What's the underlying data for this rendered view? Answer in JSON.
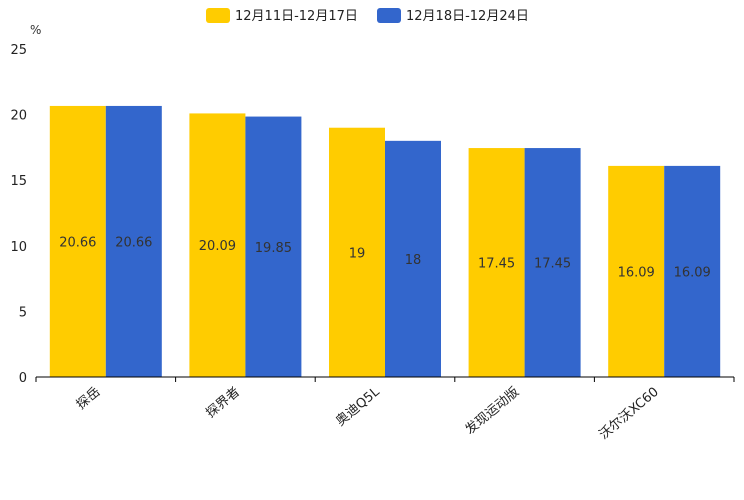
{
  "chart_data": {
    "type": "bar",
    "title": "",
    "ylabel": "%",
    "xlabel": "",
    "ylim": [
      0,
      25
    ],
    "yticks": [
      0,
      5,
      10,
      15,
      20,
      25
    ],
    "categories": [
      "探岳",
      "探界者",
      "奥迪Q5L",
      "发现运动版",
      "沃尔沃XC60"
    ],
    "series": [
      {
        "name": "12月11日-12月17日",
        "color": "#FFCC00",
        "values": [
          20.66,
          20.09,
          19,
          17.45,
          16.09
        ]
      },
      {
        "name": "12月18日-12月24日",
        "color": "#3366CC",
        "values": [
          20.66,
          19.85,
          18,
          17.45,
          16.09
        ]
      }
    ],
    "legend_position": "top-center",
    "grid": false
  }
}
